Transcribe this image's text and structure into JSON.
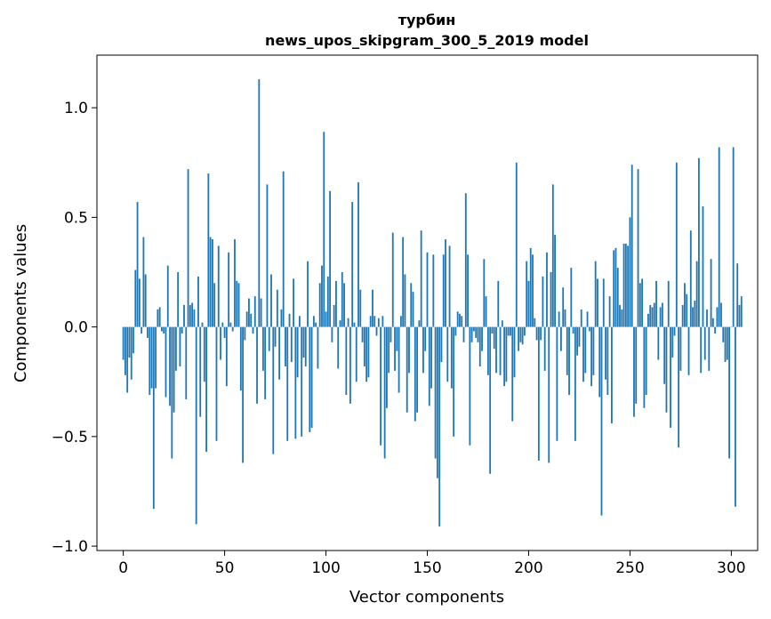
{
  "chart_data": {
    "type": "bar",
    "title_lines": [
      "турбин",
      "news_upos_skipgram_300_5_2019 model"
    ],
    "xlabel": "Vector components",
    "ylabel": "Components values",
    "xlim": [
      -13,
      313
    ],
    "ylim": [
      -1.02,
      1.24
    ],
    "xticks": [
      0,
      50,
      100,
      150,
      200,
      250,
      300
    ],
    "xtick_labels": [
      "0",
      "50",
      "100",
      "150",
      "200",
      "250",
      "300"
    ],
    "yticks": [
      -1.0,
      -0.5,
      0.0,
      0.5,
      1.0
    ],
    "ytick_labels": [
      "−1.0",
      "−0.5",
      "0.0",
      "0.5",
      "1.0"
    ],
    "grid": false,
    "bar_color": "#1f77b4",
    "values": [
      -0.15,
      -0.22,
      -0.3,
      -0.14,
      -0.24,
      -0.12,
      0.26,
      0.57,
      0.22,
      -0.03,
      0.41,
      0.24,
      -0.05,
      -0.31,
      -0.28,
      -0.83,
      -0.28,
      0.08,
      0.09,
      -0.02,
      -0.03,
      -0.32,
      0.28,
      -0.36,
      -0.6,
      -0.39,
      -0.2,
      0.25,
      -0.18,
      -0.03,
      0.1,
      -0.33,
      0.72,
      0.1,
      0.11,
      0.08,
      -0.9,
      0.23,
      -0.41,
      0.02,
      -0.25,
      -0.57,
      0.7,
      0.41,
      0.4,
      0.2,
      -0.52,
      0.37,
      -0.15,
      0.02,
      -0.05,
      -0.27,
      0.34,
      0.02,
      -0.02,
      0.4,
      0.21,
      0.2,
      -0.29,
      -0.62,
      -0.06,
      0.07,
      0.13,
      0.06,
      -0.03,
      0.14,
      -0.35,
      1.13,
      0.13,
      -0.2,
      -0.33,
      0.65,
      -0.11,
      0.24,
      -0.58,
      -0.09,
      0.17,
      -0.24,
      0.08,
      0.71,
      -0.18,
      -0.52,
      0.06,
      -0.16,
      0.22,
      -0.51,
      -0.23,
      0.05,
      -0.5,
      -0.14,
      -0.18,
      0.3,
      -0.48,
      -0.46,
      0.05,
      0.02,
      -0.19,
      0.2,
      0.28,
      0.89,
      0.07,
      0.23,
      0.62,
      -0.07,
      0.1,
      0.21,
      -0.19,
      0.03,
      0.25,
      0.2,
      -0.31,
      0.04,
      -0.35,
      0.57,
      0.02,
      -0.25,
      0.66,
      0.17,
      -0.07,
      -0.18,
      -0.25,
      -0.23,
      0.05,
      0.17,
      0.05,
      -0.04,
      0.04,
      -0.54,
      0.05,
      -0.6,
      -0.37,
      -0.21,
      -0.07,
      0.43,
      -0.2,
      -0.11,
      -0.3,
      0.05,
      0.41,
      0.24,
      -0.39,
      -0.21,
      0.2,
      0.16,
      -0.43,
      -0.39,
      0.03,
      0.44,
      -0.21,
      -0.11,
      0.34,
      -0.36,
      -0.28,
      0.33,
      -0.6,
      -0.69,
      -0.91,
      -0.16,
      0.33,
      0.4,
      -0.25,
      0.37,
      -0.28,
      -0.5,
      -0.04,
      0.07,
      0.06,
      0.05,
      -0.07,
      0.61,
      0.33,
      -0.54,
      -0.07,
      -0.02,
      -0.05,
      -0.07,
      -0.18,
      -0.11,
      0.31,
      0.14,
      -0.22,
      -0.67,
      -0.03,
      -0.1,
      -0.21,
      0.21,
      -0.22,
      0.03,
      -0.27,
      -0.25,
      -0.04,
      -0.04,
      -0.43,
      -0.23,
      0.75,
      -0.11,
      -0.07,
      -0.08,
      -0.04,
      0.3,
      0.21,
      0.36,
      0.33,
      0.04,
      -0.06,
      -0.61,
      -0.06,
      0.23,
      -0.2,
      0.34,
      -0.62,
      0.25,
      0.65,
      0.42,
      -0.52,
      0.07,
      -0.11,
      0.18,
      0.08,
      -0.22,
      -0.31,
      0.27,
      -0.03,
      -0.52,
      -0.13,
      -0.09,
      0.08,
      -0.25,
      -0.21,
      0.07,
      -0.02,
      -0.27,
      -0.22,
      0.3,
      0.22,
      -0.32,
      -0.86,
      0.22,
      -0.24,
      -0.31,
      0.14,
      -0.44,
      0.35,
      0.36,
      0.27,
      0.1,
      0.08,
      0.38,
      0.38,
      0.37,
      0.5,
      0.74,
      -0.41,
      -0.35,
      0.72,
      0.2,
      0.22,
      -0.37,
      -0.31,
      0.06,
      0.1,
      0.09,
      0.11,
      0.21,
      -0.15,
      0.09,
      0.11,
      -0.26,
      -0.39,
      0.21,
      -0.46,
      -0.14,
      -0.04,
      0.75,
      -0.55,
      -0.2,
      0.1,
      0.2,
      0.15,
      -0.22,
      0.44,
      0.09,
      0.12,
      0.3,
      0.77,
      -0.21,
      0.55,
      -0.15,
      0.08,
      -0.2,
      0.31,
      0.04,
      -0.03,
      0.09,
      0.82,
      0.11,
      -0.07,
      -0.16,
      -0.15,
      -0.6,
      0.0,
      0.82,
      -0.82,
      0.29,
      0.1,
      0.14
    ]
  }
}
